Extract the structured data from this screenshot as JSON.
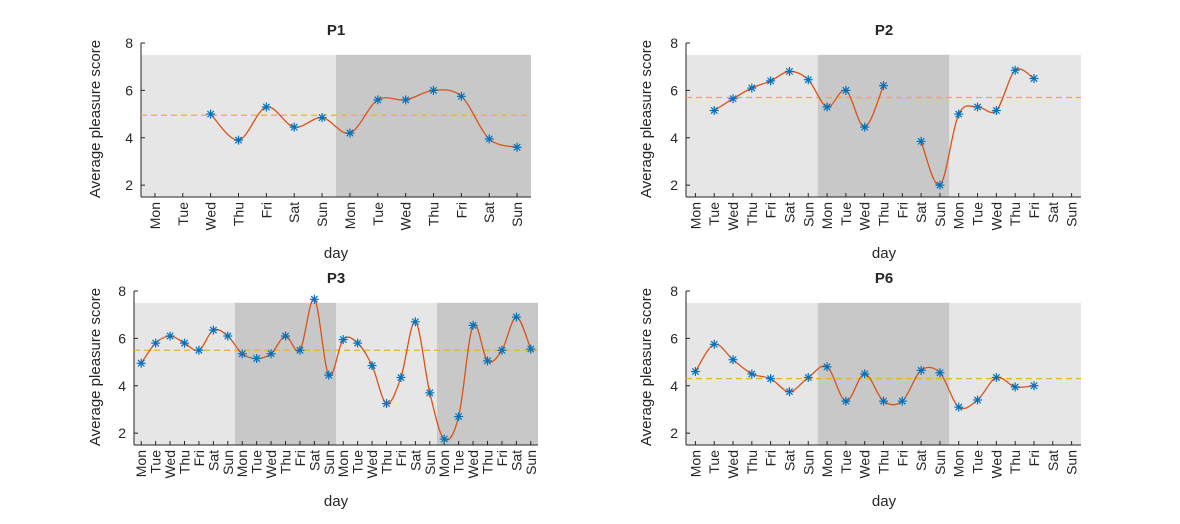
{
  "figure": {
    "colors": {
      "background": "#ffffff",
      "panel_light": "#e6e6e6",
      "panel_dark": "#c8c8c8",
      "marker": "#0072bd",
      "curve": "#d95319",
      "mean_line": "#edb120",
      "axis": "#262626"
    }
  },
  "chart_data": [
    {
      "type": "line",
      "title": "P1",
      "xlabel": "day",
      "ylabel": "Average pleasure score",
      "ylim": [
        1.5,
        8
      ],
      "yticks": [
        2,
        4,
        6,
        8
      ],
      "categories": [
        "Mon",
        "Tue",
        "Wed",
        "Thu",
        "Fri",
        "Sat",
        "Sun",
        "Mon",
        "Tue",
        "Wed",
        "Thu",
        "Fri",
        "Sat",
        "Sun"
      ],
      "week_shading": [
        "light",
        "dark"
      ],
      "series": [
        {
          "values": [
            null,
            null,
            5.0,
            3.9,
            5.3,
            4.45,
            4.85,
            4.2,
            5.6,
            5.6,
            6.0,
            5.75,
            3.95,
            3.6
          ]
        }
      ],
      "mean": 4.95,
      "shaded_range": [
        1.5,
        7.5
      ]
    },
    {
      "type": "line",
      "title": "P2",
      "xlabel": "day",
      "ylabel": "Average pleasure score",
      "ylim": [
        1.5,
        8
      ],
      "yticks": [
        2,
        4,
        6,
        8
      ],
      "categories": [
        "Mon",
        "Tue",
        "Wed",
        "Thu",
        "Fri",
        "Sat",
        "Sun",
        "Mon",
        "Tue",
        "Wed",
        "Thu",
        "Fri",
        "Sat",
        "Sun",
        "Mon",
        "Tue",
        "Wed",
        "Thu",
        "Fri",
        "Sat",
        "Sun"
      ],
      "week_shading": [
        "light",
        "dark",
        "light"
      ],
      "series": [
        {
          "values": [
            null,
            5.15,
            5.65,
            6.1,
            6.4,
            6.8,
            6.45,
            5.3,
            6.0,
            4.45,
            6.2,
            null,
            3.85,
            2.0,
            5.0,
            5.3,
            5.15,
            6.85,
            6.5,
            null,
            null
          ]
        }
      ],
      "mean": 5.7,
      "shaded_range": [
        1.5,
        7.5
      ]
    },
    {
      "type": "line",
      "title": "P3",
      "xlabel": "day",
      "ylabel": "Average pleasure score",
      "ylim": [
        1.5,
        8
      ],
      "yticks": [
        2,
        4,
        6,
        8
      ],
      "categories": [
        "Mon",
        "Tue",
        "Wed",
        "Thu",
        "Fri",
        "Sat",
        "Sun",
        "Mon",
        "Tue",
        "Wed",
        "Thu",
        "Fri",
        "Sat",
        "Sun",
        "Mon",
        "Tue",
        "Wed",
        "Thu",
        "Fri",
        "Sat",
        "Sun",
        "Mon",
        "Tue",
        "Wed",
        "Thu",
        "Fri",
        "Sat",
        "Sun"
      ],
      "week_shading": [
        "light",
        "dark",
        "light",
        "dark"
      ],
      "series": [
        {
          "values": [
            4.95,
            5.8,
            6.1,
            5.8,
            5.5,
            6.35,
            6.1,
            5.35,
            5.15,
            5.35,
            6.1,
            5.5,
            7.65,
            4.45,
            5.95,
            5.8,
            4.85,
            3.25,
            4.35,
            6.7,
            3.7,
            1.75,
            2.7,
            6.55,
            5.05,
            5.5,
            6.9,
            5.55
          ]
        }
      ],
      "mean": 5.5,
      "shaded_range": [
        1.5,
        7.5
      ]
    },
    {
      "type": "line",
      "title": "P6",
      "xlabel": "day",
      "ylabel": "Average pleasure score",
      "ylim": [
        1.5,
        8
      ],
      "yticks": [
        2,
        4,
        6,
        8
      ],
      "categories": [
        "Mon",
        "Tue",
        "Wed",
        "Thu",
        "Fri",
        "Sat",
        "Sun",
        "Mon",
        "Tue",
        "Wed",
        "Thu",
        "Fri",
        "Sat",
        "Sun",
        "Mon",
        "Tue",
        "Wed",
        "Thu",
        "Fri",
        "Sat",
        "Sun"
      ],
      "week_shading": [
        "light",
        "dark",
        "light"
      ],
      "series": [
        {
          "values": [
            4.6,
            5.75,
            5.1,
            4.5,
            4.3,
            3.75,
            4.35,
            4.8,
            3.35,
            4.5,
            3.35,
            3.35,
            4.65,
            4.55,
            3.1,
            3.4,
            4.35,
            3.95,
            4.0,
            null,
            null
          ]
        }
      ],
      "mean": 4.3,
      "shaded_range": [
        1.5,
        7.5
      ]
    }
  ]
}
